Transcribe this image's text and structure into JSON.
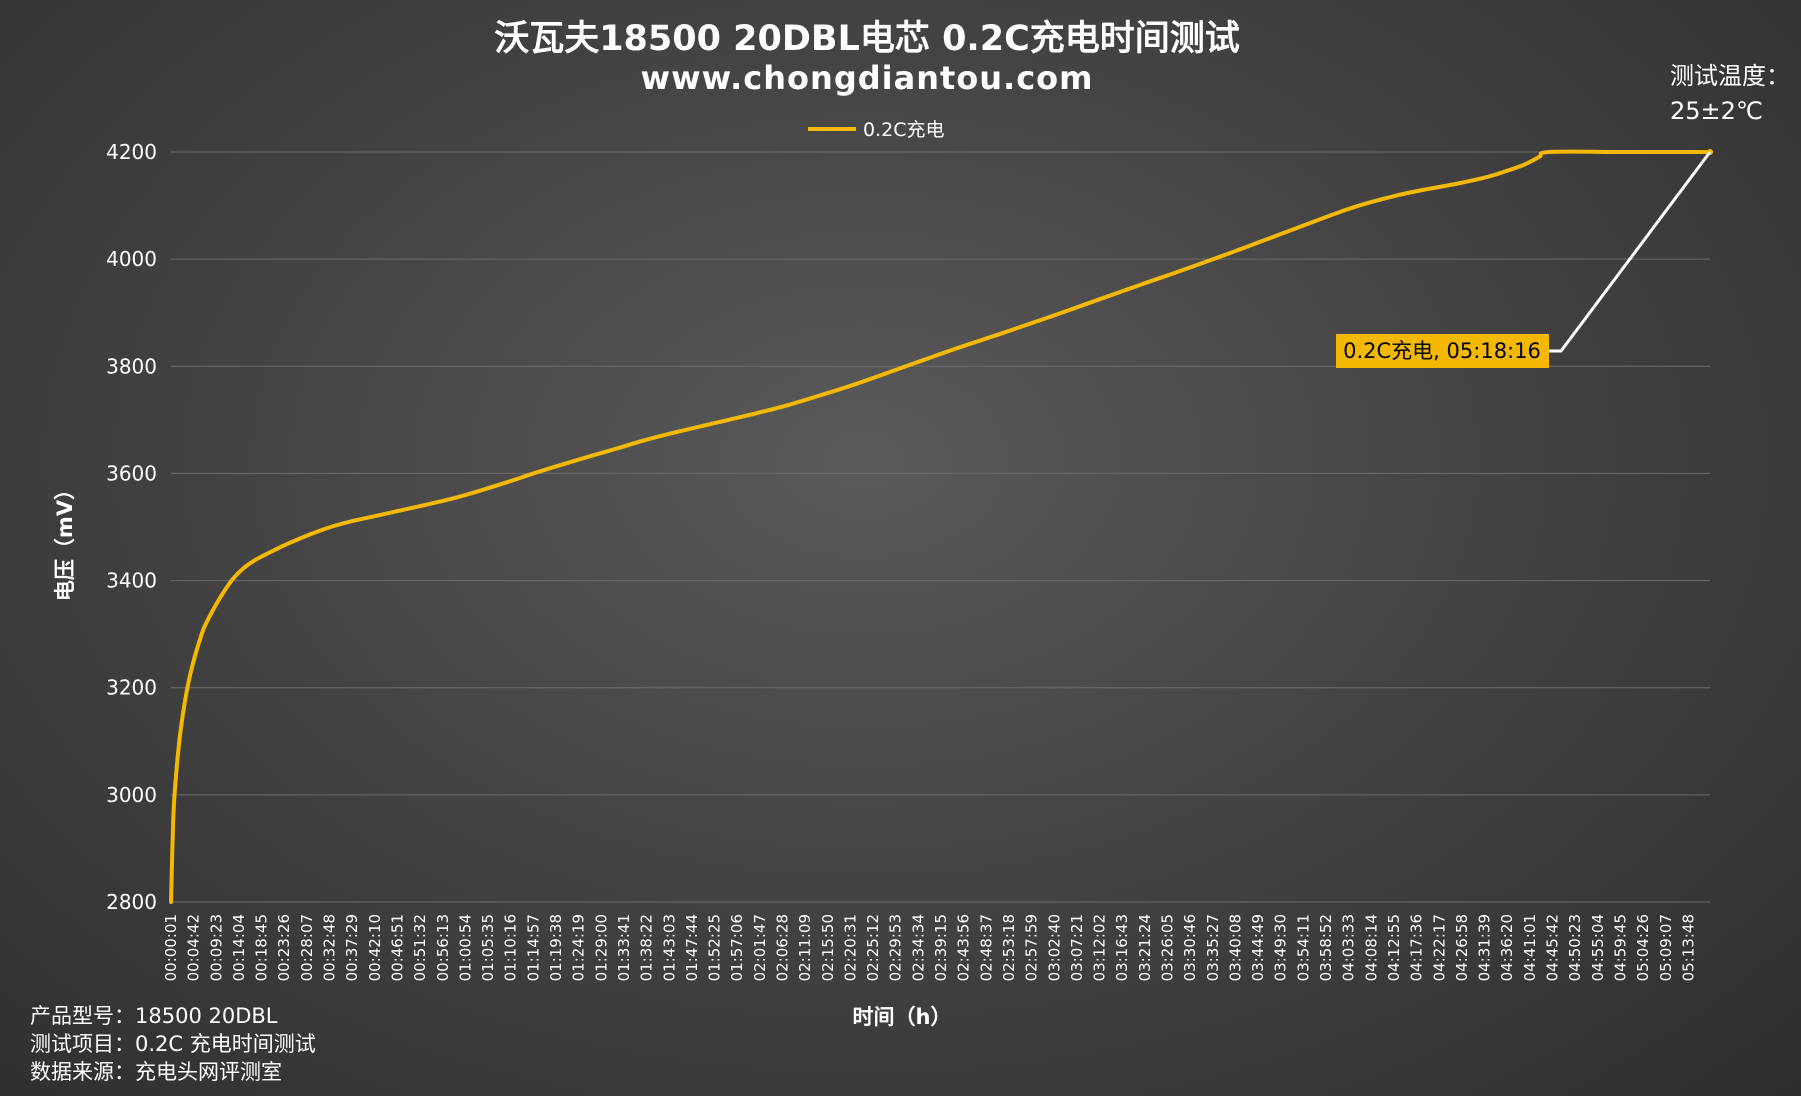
{
  "chart_data": {
    "type": "line",
    "title": "沃瓦夫18500 20DBL电芯 0.2C充电时间测试",
    "subtitle": "www.chongdiantou.com",
    "xlabel": "时间（h）",
    "ylabel": "电压（mV）",
    "ylim": [
      2800,
      4200
    ],
    "yticks": [
      2800,
      3000,
      3200,
      3400,
      3600,
      3800,
      4000,
      4200
    ],
    "grid": true,
    "legend_position": "top-center",
    "xlim_seconds": [
      1,
      19096
    ],
    "x_tick_labels": [
      "00:00:01",
      "00:04:42",
      "00:09:23",
      "00:14:04",
      "00:18:45",
      "00:23:26",
      "00:28:07",
      "00:32:48",
      "00:37:29",
      "00:42:10",
      "00:46:51",
      "00:51:32",
      "00:56:13",
      "01:00:54",
      "01:05:35",
      "01:10:16",
      "01:14:57",
      "01:19:38",
      "01:24:19",
      "01:29:00",
      "01:33:41",
      "01:38:22",
      "01:43:03",
      "01:47:44",
      "01:52:25",
      "01:57:06",
      "02:01:47",
      "02:06:28",
      "02:11:09",
      "02:15:50",
      "02:20:31",
      "02:25:12",
      "02:29:53",
      "02:34:34",
      "02:39:15",
      "02:43:56",
      "02:48:37",
      "02:53:18",
      "02:57:59",
      "03:02:40",
      "03:07:21",
      "03:12:02",
      "03:16:43",
      "03:21:24",
      "03:26:05",
      "03:30:46",
      "03:35:27",
      "03:40:08",
      "03:44:49",
      "03:49:30",
      "03:54:11",
      "03:58:52",
      "04:03:33",
      "04:08:14",
      "04:12:55",
      "04:17:36",
      "04:22:17",
      "04:26:58",
      "04:31:39",
      "04:36:20",
      "04:41:01",
      "04:45:42",
      "04:50:23",
      "04:55:04",
      "04:59:45",
      "05:04:26",
      "05:09:07",
      "05:13:48"
    ],
    "series": [
      {
        "name": "0.2C充电",
        "color": "#f5b800",
        "x": [
          "00:00:01",
          "00:00:30",
          "00:01:00",
          "00:01:30",
          "00:02:00",
          "00:03:00",
          "00:04:00",
          "00:05:00",
          "00:06:00",
          "00:07:00",
          "00:09:00",
          "00:11:00",
          "00:13:00",
          "00:15:00",
          "00:17:00",
          "00:19:00",
          "00:21:00",
          "00:23:00",
          "00:26:00",
          "00:29:00",
          "00:33:00",
          "00:37:00",
          "00:42:00",
          "00:47:00",
          "00:53:00",
          "00:59:00",
          "01:04:00",
          "01:10:00",
          "01:16:00",
          "01:24:00",
          "01:32:00",
          "01:38:00",
          "01:44:00",
          "01:52:00",
          "02:00:00",
          "02:07:00",
          "02:14:00",
          "02:22:00",
          "02:32:00",
          "02:42:00",
          "02:52:00",
          "03:02:00",
          "03:12:00",
          "03:22:00",
          "03:30:00",
          "03:38:00",
          "03:46:00",
          "03:54:00",
          "04:02:00",
          "04:08:00",
          "04:14:00",
          "04:20:00",
          "04:26:00",
          "04:32:00",
          "04:36:00",
          "04:40:00",
          "04:43:00",
          "04:45:00",
          "05:00:00",
          "05:10:00",
          "05:18:16"
        ],
        "values": [
          2800,
          2960,
          3030,
          3080,
          3120,
          3180,
          3225,
          3260,
          3290,
          3315,
          3350,
          3380,
          3405,
          3423,
          3436,
          3446,
          3455,
          3464,
          3476,
          3487,
          3500,
          3510,
          3520,
          3530,
          3542,
          3555,
          3568,
          3585,
          3603,
          3625,
          3646,
          3662,
          3676,
          3693,
          3710,
          3726,
          3745,
          3768,
          3800,
          3832,
          3862,
          3893,
          3925,
          3957,
          3982,
          4008,
          4035,
          4062,
          4089,
          4106,
          4120,
          4131,
          4141,
          4153,
          4164,
          4177,
          4191,
          4200,
          4200,
          4200,
          4200
        ]
      }
    ],
    "annotations": [
      {
        "text": "0.2C充电, 05:18:16",
        "points_to": "05:18:16",
        "value": 4200
      }
    ],
    "temperature_note": [
      "测试温度：",
      "25±2℃"
    ],
    "info_lines": [
      "产品型号：18500 20DBL",
      "测试项目：0.2C 充电时间测试",
      "数据来源：充电头网评测室"
    ]
  }
}
